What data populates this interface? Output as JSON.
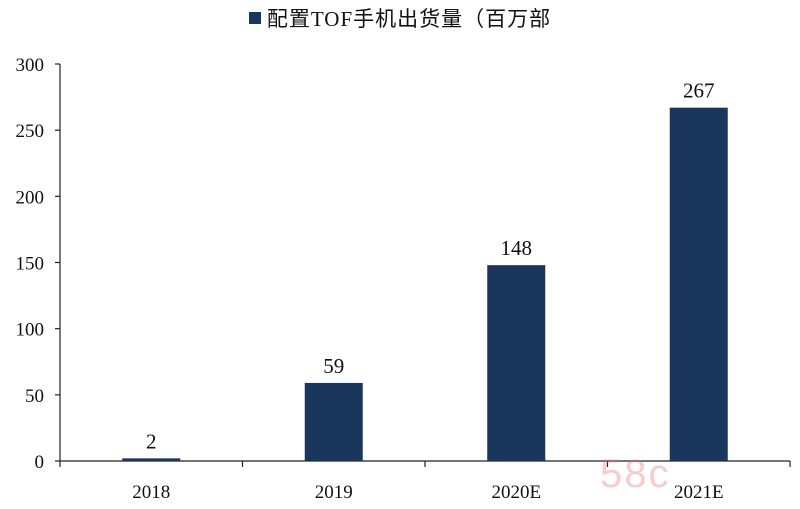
{
  "legend": {
    "label": "配置TOF手机出货量（百万部",
    "color": "#1b365d"
  },
  "watermark": "58c",
  "chart_data": {
    "type": "bar",
    "categories": [
      "2018",
      "2019",
      "2020E",
      "2021E"
    ],
    "series": [
      {
        "name": "配置TOF手机出货量（百万部",
        "values": [
          2,
          59,
          148,
          267
        ]
      }
    ],
    "data_labels": [
      "2",
      "59",
      "148",
      "267"
    ],
    "y_ticks": [
      "0",
      "50",
      "100",
      "150",
      "200",
      "250",
      "300"
    ],
    "ylim": [
      0,
      300
    ],
    "grid": false,
    "legend_position": "top-center",
    "bar_color": "#1b365d"
  }
}
